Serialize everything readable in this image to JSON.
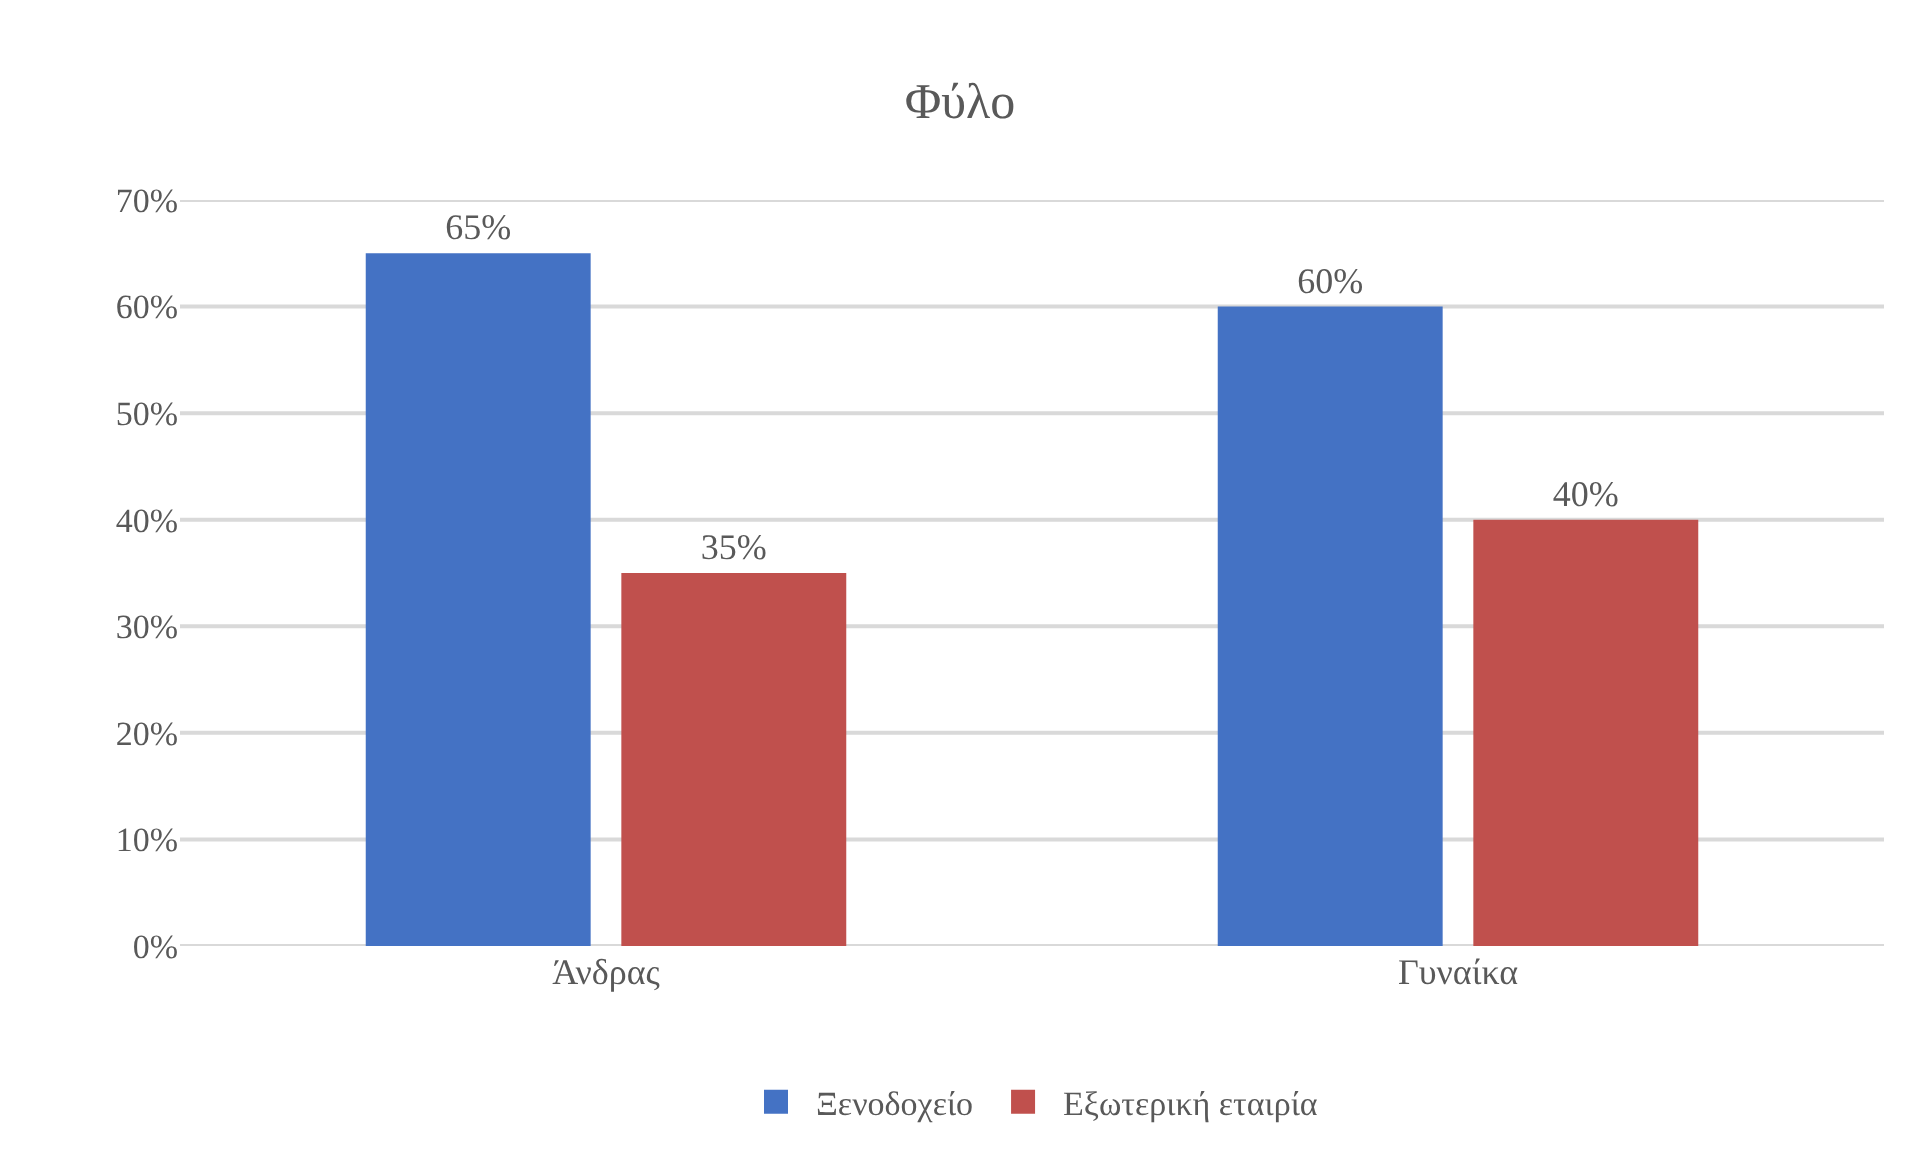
{
  "chart_data": {
    "type": "bar",
    "title": "Φύλο",
    "categories": [
      "Άνδρας",
      "Γυναίκα"
    ],
    "series": [
      {
        "name": "Ξενοδοχείο",
        "color": "#4472c4",
        "values": [
          65,
          60
        ],
        "value_labels": [
          "65%",
          "60%"
        ]
      },
      {
        "name": "Εξωτερική εταιρία",
        "color": "#c0504d",
        "values": [
          35,
          40
        ],
        "value_labels": [
          "35%",
          "40%"
        ]
      }
    ],
    "ylim": [
      0,
      70
    ],
    "yticks": [
      {
        "value": 0,
        "label": "0%"
      },
      {
        "value": 10,
        "label": "10%"
      },
      {
        "value": 20,
        "label": "20%"
      },
      {
        "value": 30,
        "label": "30%"
      },
      {
        "value": 40,
        "label": "40%"
      },
      {
        "value": 50,
        "label": "50%"
      },
      {
        "value": 60,
        "label": "60%"
      },
      {
        "value": 70,
        "label": "70%"
      }
    ],
    "grid": "y",
    "legend": "bottom"
  }
}
